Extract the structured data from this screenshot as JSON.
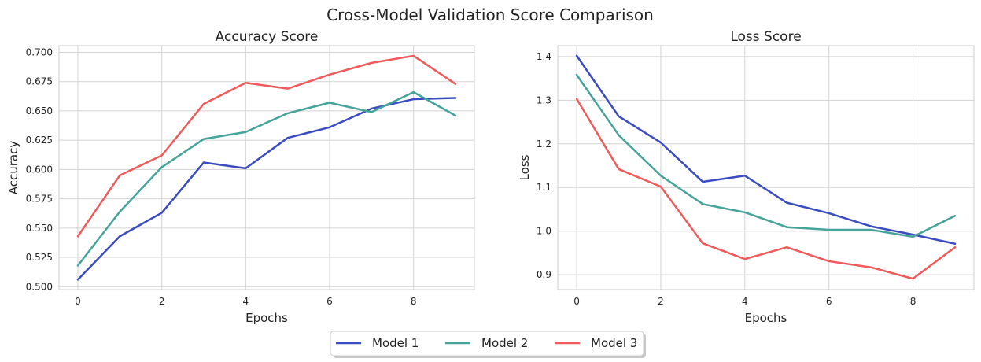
{
  "figure_title": "Cross-Model Validation Score Comparison",
  "colors": {
    "model1": "#3b4cc0",
    "model2": "#45a39a",
    "model3": "#f05a5a",
    "grid": "#d3d3d3",
    "spine": "#cccccc"
  },
  "legend": {
    "placement": "bottom-center",
    "entries": [
      "Model 1",
      "Model 2",
      "Model 3"
    ]
  },
  "chart_data": [
    {
      "type": "line",
      "title": "Accuracy Score",
      "xlabel": "Epochs",
      "ylabel": "Accuracy",
      "grid": true,
      "x": [
        0,
        1,
        2,
        3,
        4,
        5,
        6,
        7,
        8,
        9
      ],
      "xticks": [
        0,
        2,
        4,
        6,
        8
      ],
      "yticks": [
        0.5,
        0.525,
        0.55,
        0.575,
        0.6,
        0.625,
        0.65,
        0.675,
        0.7
      ],
      "ytick_labels": [
        "0.500",
        "0.525",
        "0.550",
        "0.575",
        "0.600",
        "0.625",
        "0.650",
        "0.675",
        "0.700"
      ],
      "xlim": [
        -0.45,
        9.45
      ],
      "ylim": [
        0.4975,
        0.7057
      ],
      "series": [
        {
          "name": "Model 1",
          "values": [
            0.506,
            0.543,
            0.563,
            0.606,
            0.601,
            0.627,
            0.636,
            0.652,
            0.66,
            0.661
          ]
        },
        {
          "name": "Model 2",
          "values": [
            0.518,
            0.564,
            0.602,
            0.626,
            0.632,
            0.648,
            0.657,
            0.649,
            0.666,
            0.646
          ]
        },
        {
          "name": "Model 3",
          "values": [
            0.543,
            0.595,
            0.612,
            0.656,
            0.674,
            0.669,
            0.681,
            0.691,
            0.697,
            0.673
          ]
        }
      ]
    },
    {
      "type": "line",
      "title": "Loss Score",
      "xlabel": "Epochs",
      "ylabel": "Loss",
      "grid": true,
      "x": [
        0,
        1,
        2,
        3,
        4,
        5,
        6,
        7,
        8,
        9
      ],
      "xticks": [
        0,
        2,
        4,
        6,
        8
      ],
      "yticks": [
        0.9,
        1.0,
        1.1,
        1.2,
        1.3,
        1.4
      ],
      "ytick_labels": [
        "0.9",
        "1.0",
        "1.1",
        "1.2",
        "1.3",
        "1.4"
      ],
      "xlim": [
        -0.45,
        9.45
      ],
      "ylim": [
        0.866,
        1.425
      ],
      "series": [
        {
          "name": "Model 1",
          "values": [
            1.402,
            1.263,
            1.203,
            1.113,
            1.127,
            1.065,
            1.041,
            1.011,
            0.992,
            0.971
          ]
        },
        {
          "name": "Model 2",
          "values": [
            1.358,
            1.22,
            1.127,
            1.062,
            1.043,
            1.009,
            1.003,
            1.003,
            0.987,
            1.035
          ]
        },
        {
          "name": "Model 3",
          "values": [
            1.303,
            1.142,
            1.102,
            0.972,
            0.936,
            0.963,
            0.931,
            0.917,
            0.891,
            0.963
          ]
        }
      ]
    }
  ]
}
